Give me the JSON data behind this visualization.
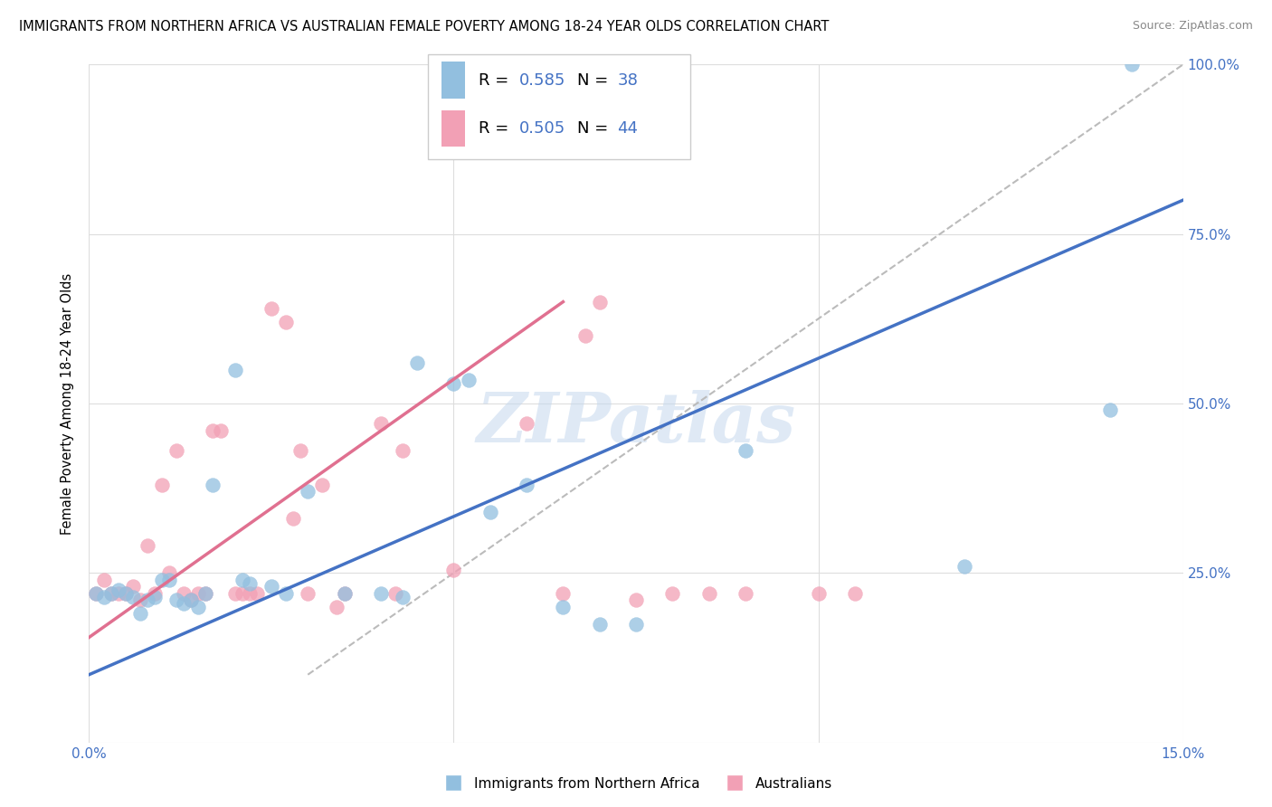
{
  "title": "IMMIGRANTS FROM NORTHERN AFRICA VS AUSTRALIAN FEMALE POVERTY AMONG 18-24 YEAR OLDS CORRELATION CHART",
  "source": "Source: ZipAtlas.com",
  "ylabel": "Female Poverty Among 18-24 Year Olds",
  "xlim": [
    0,
    0.15
  ],
  "ylim": [
    0,
    1.0
  ],
  "blue_R": 0.585,
  "blue_N": 38,
  "pink_R": 0.505,
  "pink_N": 44,
  "blue_color": "#92BFDF",
  "pink_color": "#F2A0B5",
  "blue_line_color": "#4472C4",
  "pink_line_color": "#E07090",
  "ref_line_color": "#BBBBBB",
  "legend_label_blue": "Immigrants from Northern Africa",
  "legend_label_pink": "Australians",
  "watermark": "ZIPatlas",
  "blue_scatter_x": [
    0.001,
    0.002,
    0.003,
    0.004,
    0.005,
    0.006,
    0.007,
    0.008,
    0.009,
    0.01,
    0.011,
    0.012,
    0.013,
    0.014,
    0.015,
    0.016,
    0.017,
    0.02,
    0.021,
    0.022,
    0.025,
    0.027,
    0.03,
    0.035,
    0.04,
    0.043,
    0.045,
    0.05,
    0.052,
    0.055,
    0.06,
    0.065,
    0.07,
    0.075,
    0.09,
    0.12,
    0.14,
    0.143
  ],
  "blue_scatter_y": [
    0.22,
    0.215,
    0.22,
    0.225,
    0.22,
    0.215,
    0.19,
    0.21,
    0.215,
    0.24,
    0.24,
    0.21,
    0.205,
    0.21,
    0.2,
    0.22,
    0.38,
    0.55,
    0.24,
    0.235,
    0.23,
    0.22,
    0.37,
    0.22,
    0.22,
    0.215,
    0.56,
    0.53,
    0.535,
    0.34,
    0.38,
    0.2,
    0.175,
    0.175,
    0.43,
    0.26,
    0.49,
    1.0
  ],
  "pink_scatter_x": [
    0.001,
    0.002,
    0.003,
    0.004,
    0.005,
    0.006,
    0.007,
    0.008,
    0.009,
    0.01,
    0.011,
    0.012,
    0.013,
    0.014,
    0.015,
    0.016,
    0.017,
    0.018,
    0.02,
    0.021,
    0.022,
    0.023,
    0.025,
    0.027,
    0.028,
    0.029,
    0.03,
    0.032,
    0.034,
    0.035,
    0.04,
    0.042,
    0.043,
    0.05,
    0.06,
    0.065,
    0.068,
    0.07,
    0.075,
    0.08,
    0.085,
    0.09,
    0.1,
    0.105
  ],
  "pink_scatter_y": [
    0.22,
    0.24,
    0.22,
    0.22,
    0.22,
    0.23,
    0.21,
    0.29,
    0.22,
    0.38,
    0.25,
    0.43,
    0.22,
    0.21,
    0.22,
    0.22,
    0.46,
    0.46,
    0.22,
    0.22,
    0.22,
    0.22,
    0.64,
    0.62,
    0.33,
    0.43,
    0.22,
    0.38,
    0.2,
    0.22,
    0.47,
    0.22,
    0.43,
    0.255,
    0.47,
    0.22,
    0.6,
    0.65,
    0.21,
    0.22,
    0.22,
    0.22,
    0.22,
    0.22
  ],
  "blue_line_x": [
    0.0,
    0.15
  ],
  "blue_line_y": [
    0.1,
    0.8
  ],
  "pink_line_x": [
    0.0,
    0.065
  ],
  "pink_line_y": [
    0.155,
    0.65
  ],
  "ref_line_x": [
    0.03,
    0.15
  ],
  "ref_line_y": [
    0.1,
    1.0
  ]
}
